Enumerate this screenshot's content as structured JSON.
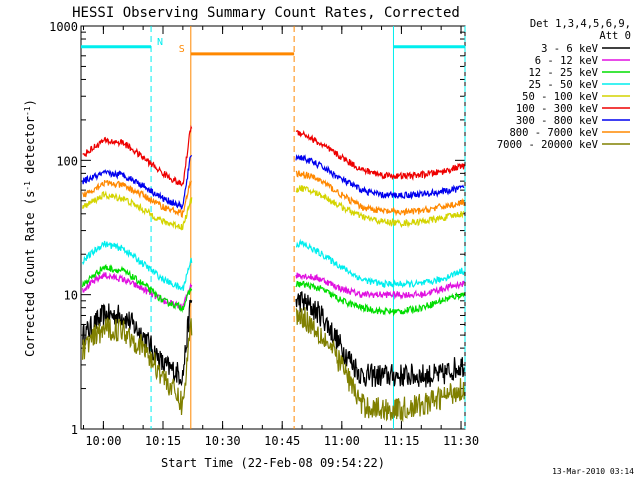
{
  "chart_data": {
    "type": "line",
    "title": "HESSI Observing Summary Count Rates, Corrected",
    "xlabel": "Start Time (22-Feb-08 09:54:22)",
    "ylabel": "Corrected Count Rate (s⁻¹ detector⁻¹)",
    "ylabel_main": "Corrected Count Rate (s",
    "ylabel_exp1": "-1",
    "ylabel_mid": " detector",
    "ylabel_exp2": "-1",
    "ylabel_end": ")",
    "y_scale": "log",
    "ylim": [
      1,
      1000
    ],
    "xlim": [
      "09:54:22",
      "11:31:00"
    ],
    "x_ticks": [
      "10:00",
      "10:15",
      "10:30",
      "10:45",
      "11:00",
      "11:15",
      "11:30"
    ],
    "y_ticks": [
      "1",
      "10",
      "100",
      "1000"
    ],
    "legend_header": [
      "Det 1,3,4,5,6,9,",
      "Att 0"
    ],
    "legend_placement": "right, outside plot",
    "series": [
      {
        "name": "3 - 6 keV",
        "color": "#000000",
        "x": [
          "09:55",
          "10:00",
          "10:05",
          "10:10",
          "10:15",
          "10:20",
          "10:22",
          "10:50",
          "10:55",
          "11:00",
          "11:05",
          "11:10",
          "11:15",
          "11:20",
          "11:25",
          "11:30"
        ],
        "y": [
          5,
          7,
          7,
          5,
          3,
          2.5,
          9,
          9,
          7,
          4,
          2.5,
          2.5,
          2.5,
          2.5,
          2.5,
          3
        ]
      },
      {
        "name": "6 - 12 keV",
        "color": "#e010e0",
        "x": [
          "09:55",
          "10:00",
          "10:05",
          "10:10",
          "10:15",
          "10:20",
          "10:22",
          "10:50",
          "10:55",
          "11:00",
          "11:05",
          "11:10",
          "11:15",
          "11:20",
          "11:25",
          "11:30"
        ],
        "y": [
          11,
          14,
          13,
          11,
          9,
          8,
          12,
          14,
          13,
          11,
          10,
          10,
          10,
          10,
          11,
          12
        ]
      },
      {
        "name": "12 - 25 keV",
        "color": "#00dd00",
        "x": [
          "09:55",
          "10:00",
          "10:05",
          "10:10",
          "10:15",
          "10:20",
          "10:22",
          "10:50",
          "10:55",
          "11:00",
          "11:05",
          "11:10",
          "11:15",
          "11:20",
          "11:25",
          "11:30"
        ],
        "y": [
          12,
          16,
          15,
          12,
          9,
          8,
          11,
          12,
          11,
          9,
          8,
          7.5,
          7.5,
          8,
          9,
          10
        ]
      },
      {
        "name": "25 - 50 keV",
        "color": "#00eeee",
        "x": [
          "09:55",
          "10:00",
          "10:05",
          "10:10",
          "10:15",
          "10:20",
          "10:22",
          "10:50",
          "10:55",
          "11:00",
          "11:05",
          "11:10",
          "11:15",
          "11:20",
          "11:25",
          "11:30"
        ],
        "y": [
          18,
          24,
          22,
          17,
          13,
          11,
          18,
          24,
          20,
          16,
          13,
          12,
          12,
          12,
          13,
          15
        ]
      },
      {
        "name": "50 - 100 keV",
        "color": "#d4d400",
        "x": [
          "09:55",
          "10:00",
          "10:05",
          "10:10",
          "10:15",
          "10:20",
          "10:22",
          "10:50",
          "10:55",
          "11:00",
          "11:05",
          "11:10",
          "11:15",
          "11:20",
          "11:25",
          "11:30"
        ],
        "y": [
          45,
          55,
          52,
          43,
          35,
          32,
          50,
          62,
          55,
          45,
          38,
          35,
          34,
          35,
          37,
          40
        ]
      },
      {
        "name": "100 - 300 keV",
        "color": "#ee0000",
        "x": [
          "09:55",
          "10:00",
          "10:05",
          "10:10",
          "10:15",
          "10:20",
          "10:22",
          "10:50",
          "10:55",
          "11:00",
          "11:05",
          "11:10",
          "11:15",
          "11:20",
          "11:25",
          "11:30"
        ],
        "y": [
          110,
          140,
          135,
          105,
          80,
          65,
          180,
          160,
          130,
          105,
          85,
          78,
          76,
          78,
          82,
          90
        ]
      },
      {
        "name": "300 - 800 keV",
        "color": "#0000ee",
        "x": [
          "09:55",
          "10:00",
          "10:05",
          "10:10",
          "10:15",
          "10:20",
          "10:22",
          "10:50",
          "10:55",
          "11:00",
          "11:05",
          "11:10",
          "11:15",
          "11:20",
          "11:25",
          "11:30"
        ],
        "y": [
          70,
          80,
          78,
          65,
          52,
          45,
          110,
          105,
          90,
          72,
          60,
          55,
          55,
          56,
          58,
          62
        ]
      },
      {
        "name": "800 - 7000 keV",
        "color": "#ff8800",
        "x": [
          "09:55",
          "10:00",
          "10:05",
          "10:10",
          "10:15",
          "10:20",
          "10:22",
          "10:50",
          "10:55",
          "11:00",
          "11:05",
          "11:10",
          "11:15",
          "11:20",
          "11:25",
          "11:30"
        ],
        "y": [
          55,
          68,
          65,
          55,
          45,
          40,
          70,
          80,
          70,
          55,
          45,
          42,
          41,
          42,
          45,
          48
        ]
      },
      {
        "name": "7000 - 20000 keV",
        "color": "#808000",
        "x": [
          "09:55",
          "10:00",
          "10:05",
          "10:10",
          "10:15",
          "10:20",
          "10:22",
          "10:50",
          "10:55",
          "11:00",
          "11:05",
          "11:10",
          "11:15",
          "11:20",
          "11:25",
          "11:30"
        ],
        "y": [
          4,
          5.5,
          5.5,
          4,
          2.5,
          1.5,
          6,
          7,
          5,
          3,
          1.5,
          1.4,
          1.4,
          1.5,
          1.7,
          2
        ]
      }
    ],
    "annotations": {
      "night_label": "N",
      "saa_label": "S",
      "night_color": "#00eeee",
      "saa_color": "#ff8800",
      "night_intervals": [
        [
          "09:54:22",
          "10:12"
        ],
        [
          "11:13",
          "11:31"
        ]
      ],
      "saa_interval": [
        "10:22",
        "10:48"
      ],
      "level": 700
    },
    "grid": false
  },
  "footer_stamp": "13-Mar-2010 03:14"
}
